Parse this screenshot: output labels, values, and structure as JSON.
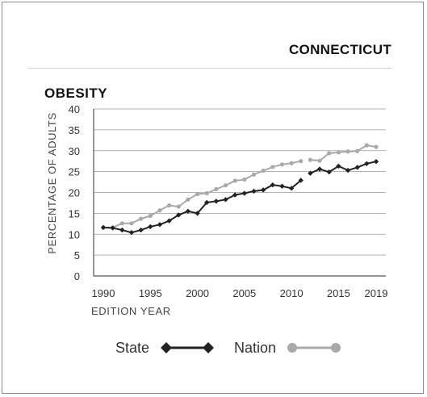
{
  "header": {
    "state_name": "CONNECTICUT"
  },
  "chart_data": {
    "type": "line",
    "title": "OBESITY",
    "xlabel": "EDITION YEAR",
    "ylabel": "PERCENTAGE OF ADULTS",
    "ylim": [
      0,
      40
    ],
    "xlim": [
      1990,
      2019
    ],
    "yticks": [
      0,
      5,
      10,
      15,
      20,
      25,
      30,
      35,
      40
    ],
    "xticks": [
      1990,
      1995,
      2000,
      2005,
      2010,
      2015,
      2019
    ],
    "grid": "horizontal",
    "legend": "bottom",
    "series": [
      {
        "name": "State",
        "color": "#222222",
        "marker": "diamond",
        "segments": [
          [
            [
              1990,
              11.6
            ],
            [
              1991,
              11.5
            ],
            [
              1992,
              11.0
            ],
            [
              1993,
              10.4
            ],
            [
              1994,
              11.0
            ],
            [
              1995,
              11.8
            ],
            [
              1996,
              12.3
            ],
            [
              1997,
              13.2
            ],
            [
              1998,
              14.6
            ],
            [
              1999,
              15.5
            ],
            [
              2000,
              15.0
            ],
            [
              2001,
              17.6
            ],
            [
              2002,
              17.9
            ],
            [
              2003,
              18.3
            ],
            [
              2004,
              19.4
            ],
            [
              2005,
              19.8
            ],
            [
              2006,
              20.3
            ],
            [
              2007,
              20.6
            ],
            [
              2008,
              21.8
            ],
            [
              2009,
              21.5
            ],
            [
              2010,
              21.0
            ],
            [
              2011,
              22.9
            ]
          ],
          [
            [
              2012,
              24.6
            ],
            [
              2013,
              25.6
            ],
            [
              2014,
              24.9
            ],
            [
              2015,
              26.3
            ],
            [
              2016,
              25.3
            ],
            [
              2017,
              26.0
            ],
            [
              2018,
              26.9
            ],
            [
              2019,
              27.4
            ]
          ]
        ]
      },
      {
        "name": "Nation",
        "color": "#a9a9a9",
        "marker": "circle",
        "segments": [
          [
            [
              1990,
              11.6
            ],
            [
              1991,
              11.6
            ],
            [
              1992,
              12.6
            ],
            [
              1993,
              12.6
            ],
            [
              1994,
              13.7
            ],
            [
              1995,
              14.4
            ],
            [
              1996,
              15.7
            ],
            [
              1997,
              16.9
            ],
            [
              1998,
              16.6
            ],
            [
              1999,
              18.3
            ],
            [
              2000,
              19.6
            ],
            [
              2001,
              19.8
            ],
            [
              2002,
              20.8
            ],
            [
              2003,
              21.7
            ],
            [
              2004,
              22.8
            ],
            [
              2005,
              23.1
            ],
            [
              2006,
              24.3
            ],
            [
              2007,
              25.2
            ],
            [
              2008,
              26.1
            ],
            [
              2009,
              26.7
            ],
            [
              2010,
              27.0
            ],
            [
              2011,
              27.5
            ]
          ],
          [
            [
              2012,
              27.8
            ],
            [
              2013,
              27.6
            ],
            [
              2014,
              29.4
            ],
            [
              2015,
              29.6
            ],
            [
              2016,
              29.8
            ],
            [
              2017,
              29.9
            ],
            [
              2018,
              31.3
            ],
            [
              2019,
              30.9
            ]
          ]
        ]
      }
    ]
  }
}
